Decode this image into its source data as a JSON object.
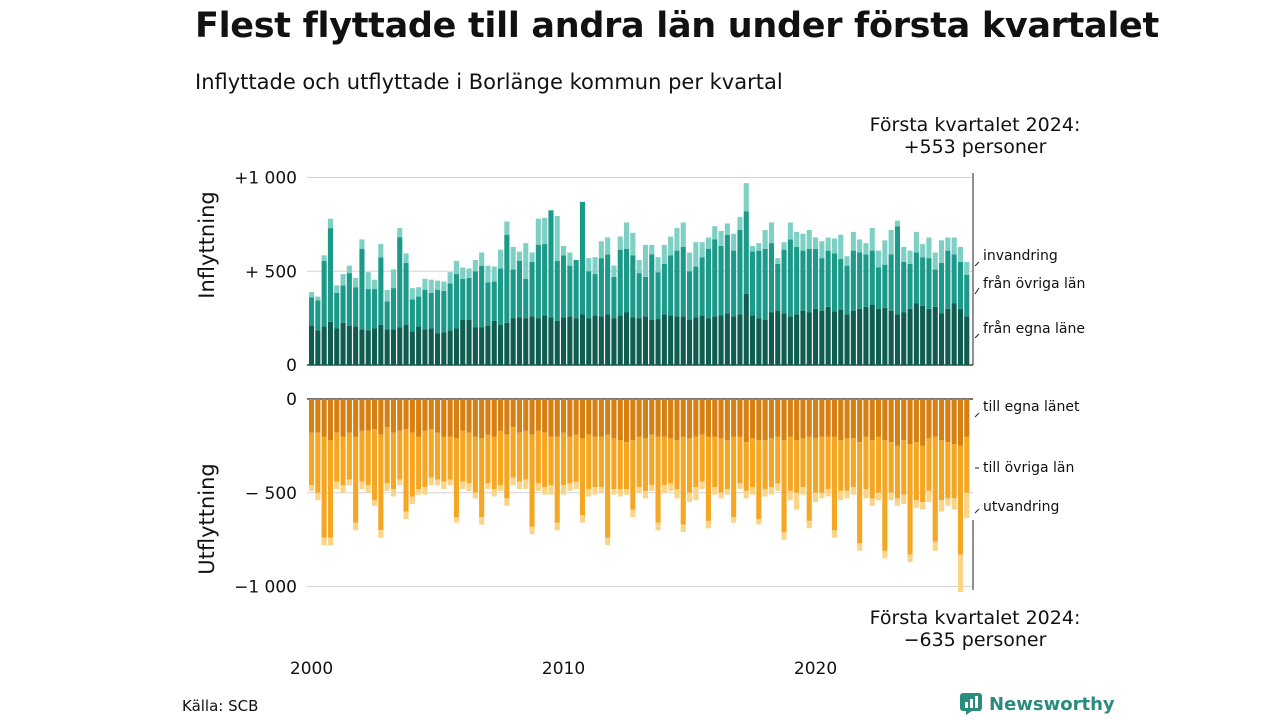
{
  "title": "Flest flyttade till andra län under första kvartalet",
  "subtitle": "Inflyttade och utflyttade i Borlänge kommun per kvartal",
  "callout_top": {
    "line1": "Första kvartalet 2024:",
    "line2": "+553 personer"
  },
  "callout_bottom": {
    "line1": "Första kvartalet 2024:",
    "line2": "−635 personer"
  },
  "source": "Källa: SCB",
  "brand": {
    "name": "Newsworthy",
    "color": "#2a8c7c"
  },
  "chart_data": [
    {
      "type": "bar",
      "stacked": true,
      "ylabel": "Inflyttning",
      "ylim": [
        0,
        1000
      ],
      "yticks": [
        {
          "value": 0,
          "label": "0"
        },
        {
          "value": 500,
          "label": "+  500"
        },
        {
          "value": 1000,
          "label": "+1 000"
        }
      ],
      "first_period": "2000 Q1",
      "series": [
        {
          "name": "från egna läne",
          "color": "#0f5c50",
          "values": [
            210,
            185,
            205,
            230,
            195,
            225,
            210,
            205,
            190,
            185,
            195,
            215,
            190,
            190,
            200,
            215,
            180,
            205,
            190,
            195,
            170,
            175,
            185,
            195,
            240,
            240,
            200,
            200,
            210,
            235,
            215,
            225,
            250,
            255,
            250,
            260,
            250,
            265,
            255,
            235,
            255,
            260,
            250,
            270,
            250,
            265,
            260,
            270,
            250,
            265,
            280,
            255,
            250,
            260,
            240,
            245,
            270,
            265,
            260,
            260,
            240,
            255,
            265,
            250,
            260,
            265,
            275,
            260,
            270,
            380,
            265,
            250,
            240,
            280,
            290,
            275,
            260,
            270,
            290,
            280,
            300,
            290,
            310,
            285,
            295,
            270,
            290,
            300,
            310,
            320,
            300,
            305,
            290,
            270,
            280,
            300,
            330,
            315,
            300,
            310,
            275,
            300,
            330,
            300,
            260
          ]
        },
        {
          "name": "från övriga län",
          "color": "#1b9a89",
          "values": [
            150,
            160,
            350,
            500,
            190,
            200,
            280,
            210,
            430,
            220,
            210,
            360,
            150,
            220,
            480,
            330,
            170,
            160,
            210,
            190,
            230,
            220,
            250,
            290,
            220,
            225,
            300,
            330,
            230,
            210,
            300,
            470,
            260,
            300,
            210,
            290,
            390,
            380,
            570,
            320,
            330,
            270,
            310,
            600,
            250,
            220,
            310,
            320,
            220,
            350,
            340,
            330,
            240,
            210,
            350,
            250,
            270,
            320,
            350,
            370,
            260,
            270,
            310,
            370,
            410,
            370,
            420,
            350,
            450,
            440,
            340,
            360,
            380,
            370,
            250,
            340,
            410,
            360,
            320,
            340,
            320,
            280,
            300,
            310,
            270,
            260,
            320,
            300,
            280,
            290,
            220,
            230,
            300,
            470,
            270,
            240,
            270,
            260,
            270,
            200,
            270,
            310,
            260,
            250,
            220
          ]
        },
        {
          "name": "invandring",
          "color": "#7fd0c4",
          "values": [
            30,
            20,
            30,
            50,
            40,
            60,
            40,
            50,
            50,
            90,
            50,
            70,
            60,
            100,
            50,
            50,
            60,
            50,
            60,
            70,
            50,
            50,
            60,
            70,
            60,
            50,
            60,
            70,
            90,
            80,
            100,
            70,
            120,
            50,
            190,
            50,
            140,
            140,
            0,
            240,
            50,
            70,
            0,
            0,
            70,
            90,
            90,
            90,
            60,
            70,
            140,
            120,
            70,
            170,
            50,
            80,
            100,
            100,
            120,
            130,
            100,
            130,
            80,
            60,
            70,
            80,
            60,
            90,
            70,
            150,
            30,
            40,
            100,
            110,
            30,
            40,
            90,
            80,
            90,
            100,
            60,
            90,
            70,
            80,
            130,
            50,
            100,
            70,
            60,
            120,
            90,
            130,
            130,
            30,
            80,
            70,
            110,
            70,
            110,
            90,
            120,
            70,
            90,
            80,
            70
          ]
        }
      ]
    },
    {
      "type": "bar",
      "stacked": true,
      "ylabel": "Utflyttning",
      "ylim": [
        -1000,
        0
      ],
      "yticks": [
        {
          "value": 0,
          "label": "0"
        },
        {
          "value": -500,
          "label": "−  500"
        },
        {
          "value": -1000,
          "label": "−1 000"
        }
      ],
      "first_period": "2000 Q1",
      "series": [
        {
          "name": "till egna länet",
          "color": "#d67f12",
          "values": [
            -180,
            -180,
            -200,
            -220,
            -180,
            -200,
            -180,
            -200,
            -170,
            -170,
            -160,
            -190,
            -150,
            -180,
            -170,
            -160,
            -180,
            -200,
            -170,
            -160,
            -180,
            -200,
            -200,
            -210,
            -170,
            -180,
            -200,
            -210,
            -190,
            -200,
            -170,
            -190,
            -150,
            -180,
            -170,
            -190,
            -170,
            -180,
            -200,
            -200,
            -180,
            -200,
            -190,
            -210,
            -190,
            -200,
            -200,
            -190,
            -210,
            -220,
            -230,
            -220,
            -200,
            -210,
            -190,
            -200,
            -200,
            -210,
            -220,
            -200,
            -210,
            -200,
            -190,
            -200,
            -200,
            -210,
            -220,
            -200,
            -200,
            -230,
            -210,
            -220,
            -220,
            -210,
            -200,
            -220,
            -200,
            -220,
            -210,
            -200,
            -210,
            -200,
            -200,
            -200,
            -220,
            -210,
            -210,
            -230,
            -200,
            -220,
            -200,
            -220,
            -230,
            -250,
            -220,
            -240,
            -230,
            -250,
            -210,
            -200,
            -220,
            -230,
            -240,
            -250,
            -200
          ]
        },
        {
          "name": "till övriga län",
          "color": "#f5a623",
          "values": [
            -280,
            -320,
            -540,
            -520,
            -260,
            -260,
            -250,
            -460,
            -270,
            -290,
            -380,
            -510,
            -300,
            -300,
            -260,
            -440,
            -340,
            -280,
            -300,
            -260,
            -250,
            -240,
            -230,
            -420,
            -270,
            -270,
            -300,
            -420,
            -260,
            -280,
            -290,
            -340,
            -270,
            -260,
            -260,
            -490,
            -280,
            -290,
            -260,
            -460,
            -280,
            -250,
            -250,
            -410,
            -290,
            -270,
            -270,
            -550,
            -270,
            -260,
            -250,
            -370,
            -270,
            -280,
            -270,
            -460,
            -260,
            -240,
            -260,
            -470,
            -290,
            -270,
            -250,
            -450,
            -270,
            -290,
            -260,
            -430,
            -250,
            -260,
            -260,
            -420,
            -260,
            -260,
            -250,
            -490,
            -290,
            -280,
            -260,
            -450,
            -290,
            -300,
            -280,
            -500,
            -270,
            -280,
            -260,
            -540,
            -280,
            -310,
            -300,
            -590,
            -270,
            -280,
            -290,
            -590,
            -310,
            -300,
            -280,
            -560,
            -320,
            -300,
            -290,
            -580,
            -300
          ]
        },
        {
          "name": "utvandring",
          "color": "#fbd488",
          "values": [
            -30,
            -40,
            -40,
            -40,
            -40,
            -40,
            -30,
            -40,
            -40,
            -40,
            -30,
            -40,
            -40,
            -40,
            -30,
            -40,
            -40,
            -30,
            -40,
            -40,
            -30,
            -40,
            -30,
            -30,
            -40,
            -40,
            -30,
            -40,
            -30,
            -40,
            -30,
            -40,
            -40,
            -40,
            -50,
            -40,
            -40,
            -40,
            -50,
            -40,
            -50,
            -40,
            -40,
            -40,
            -40,
            -40,
            -30,
            -40,
            -30,
            -40,
            -30,
            -40,
            -30,
            -40,
            -30,
            -40,
            -40,
            -40,
            -50,
            -40,
            -50,
            -70,
            -40,
            -40,
            -40,
            -30,
            -30,
            -30,
            -30,
            -40,
            -40,
            -30,
            -40,
            -40,
            -40,
            -40,
            -50,
            -90,
            -40,
            -40,
            -50,
            -30,
            -40,
            -40,
            -50,
            -40,
            -40,
            -40,
            -50,
            -40,
            -40,
            -40,
            -40,
            -40,
            -50,
            -40,
            -40,
            -40,
            -60,
            -50,
            -60,
            -40,
            -60,
            -200,
            -135
          ]
        }
      ]
    }
  ],
  "x_axis": {
    "tick_labels": [
      {
        "period": 0,
        "label": "2000"
      },
      {
        "period": 40,
        "label": "2010"
      },
      {
        "period": 80,
        "label": "2020"
      }
    ]
  }
}
